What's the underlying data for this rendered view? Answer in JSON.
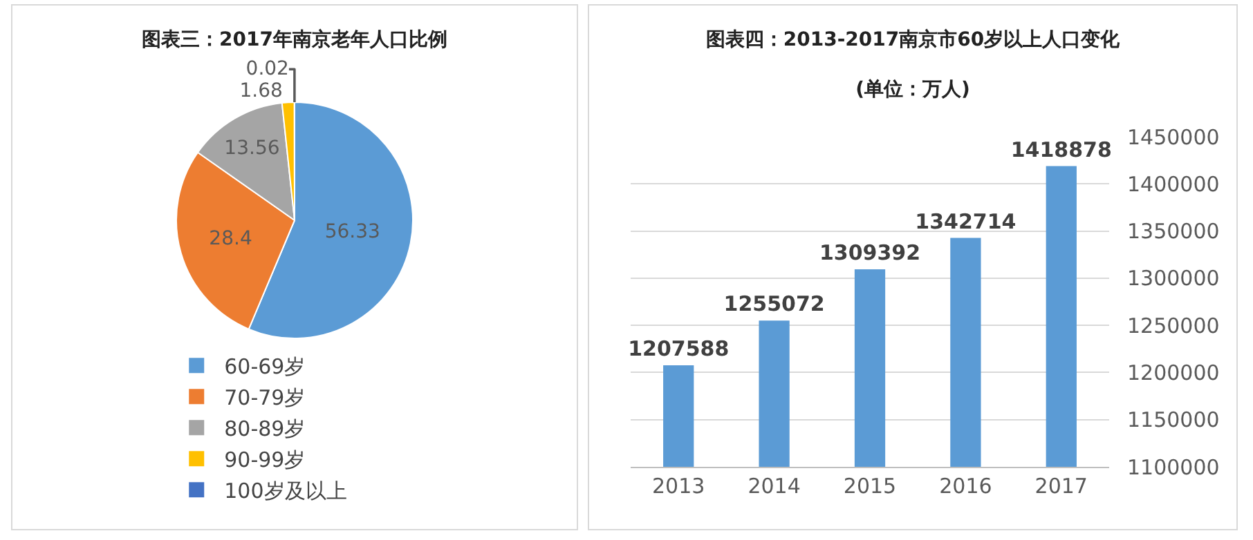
{
  "chart_data": [
    {
      "type": "pie",
      "title": "图表三：2017年南京老年人口比例",
      "categories": [
        "60-69岁",
        "70-79岁",
        "80-89岁",
        "90-99岁",
        "100岁及以上"
      ],
      "values": [
        56.33,
        28.4,
        13.56,
        1.68,
        0.02
      ],
      "colors": [
        "#5b9bd5",
        "#ed7d31",
        "#a5a5a5",
        "#ffc000",
        "#4472c4"
      ],
      "data_labels": true,
      "legend": "bottom"
    },
    {
      "type": "bar",
      "title": "图表四：2013-2017南京市60岁以上人口变化",
      "subtitle": "(单位：万人)",
      "categories": [
        "2013",
        "2014",
        "2015",
        "2016",
        "2017"
      ],
      "values": [
        1207588,
        1255072,
        1309392,
        1342714,
        1418878
      ],
      "color": "#5b9bd5",
      "ylim": [
        1100000,
        1450000
      ],
      "yticks": [
        1100000,
        1150000,
        1200000,
        1250000,
        1300000,
        1350000,
        1400000,
        1450000
      ],
      "grid": "y",
      "data_labels": true,
      "legend": false
    }
  ]
}
